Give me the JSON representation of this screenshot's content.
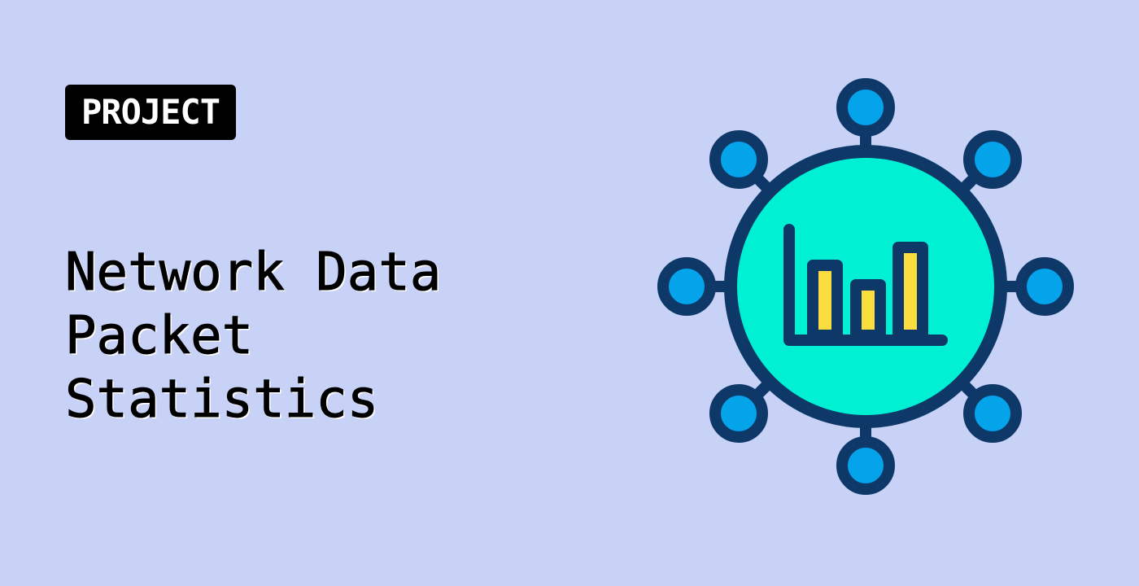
{
  "badge": {
    "label": "PROJECT"
  },
  "title": {
    "lines": [
      "Network Data",
      "Packet",
      "Statistics"
    ]
  },
  "icon": {
    "name": "network-chart-icon",
    "colors": {
      "outline": "#0d3868",
      "center_fill": "#00f0d4",
      "node_fill": "#04a3ea",
      "bar_fill": "#fadd3e"
    }
  },
  "colors": {
    "background": "#c8d1f6",
    "badge_background": "#000000",
    "badge_text": "#ffffff",
    "title_text": "#000000"
  }
}
